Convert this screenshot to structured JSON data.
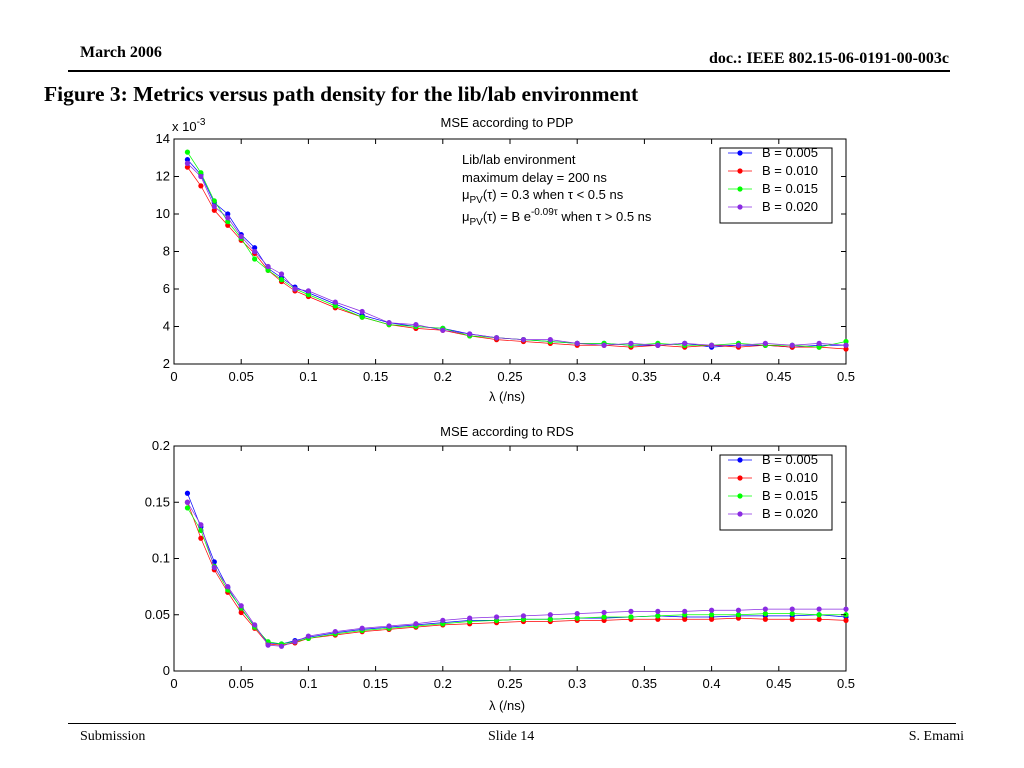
{
  "header": {
    "date": "March 2006",
    "doc": "doc.: IEEE 802.15-06-0191-00-003c"
  },
  "figure_title": "Figure 3: Metrics versus path density for the lib/lab environment",
  "footer": {
    "left": "Submission",
    "center": "Slide 14",
    "right": "S. Emami"
  },
  "colors": {
    "b005": "#0000ff",
    "b010": "#ff0000",
    "b015": "#00ff00",
    "b020": "#8a2be2"
  },
  "chart_data": [
    {
      "type": "line",
      "title": "MSE according to PDP",
      "xlabel": "λ (/ns)",
      "ylabel": "",
      "y_multiplier": "x 10^-3",
      "xlim": [
        0,
        0.5
      ],
      "ylim": [
        2,
        14
      ],
      "xticks": [
        "0",
        "0.05",
        "0.1",
        "0.15",
        "0.2",
        "0.25",
        "0.3",
        "0.35",
        "0.4",
        "0.45",
        "0.5"
      ],
      "yticks": [
        "2",
        "4",
        "6",
        "8",
        "10",
        "12",
        "14"
      ],
      "legend_position": "top-right",
      "annotation": [
        "Lib/lab environment",
        "maximum delay = 200 ns",
        "μPV(τ) = 0.3 when τ < 0.5 ns",
        "μPV(τ) = B e-0.09τ when τ > 0.5 ns"
      ],
      "x": [
        0.01,
        0.02,
        0.03,
        0.04,
        0.05,
        0.06,
        0.07,
        0.08,
        0.09,
        0.1,
        0.12,
        0.14,
        0.16,
        0.18,
        0.2,
        0.22,
        0.24,
        0.26,
        0.28,
        0.3,
        0.32,
        0.34,
        0.36,
        0.38,
        0.4,
        0.42,
        0.44,
        0.46,
        0.48,
        0.5
      ],
      "series": [
        {
          "name": "B = 0.005",
          "color": "#0000ff",
          "values": [
            12.9,
            12.1,
            10.6,
            10.0,
            8.9,
            8.2,
            7.1,
            6.6,
            6.1,
            5.8,
            5.2,
            4.6,
            4.2,
            4.0,
            3.9,
            3.6,
            3.4,
            3.3,
            3.2,
            3.1,
            3.1,
            3.0,
            3.0,
            3.1,
            2.9,
            3.0,
            3.0,
            2.9,
            3.0,
            3.0
          ]
        },
        {
          "name": "B = 0.010",
          "color": "#ff0000",
          "values": [
            12.5,
            11.5,
            10.2,
            9.4,
            8.6,
            7.9,
            7.0,
            6.4,
            5.9,
            5.6,
            5.0,
            4.5,
            4.1,
            3.9,
            3.8,
            3.5,
            3.3,
            3.2,
            3.1,
            3.0,
            3.0,
            2.9,
            3.0,
            2.9,
            3.0,
            2.9,
            3.0,
            2.9,
            2.9,
            2.8
          ]
        },
        {
          "name": "B = 0.015",
          "color": "#00ff00",
          "values": [
            13.3,
            12.2,
            10.7,
            9.6,
            8.7,
            7.6,
            7.0,
            6.5,
            6.0,
            5.7,
            5.1,
            4.5,
            4.1,
            4.0,
            3.9,
            3.5,
            3.4,
            3.3,
            3.2,
            3.1,
            3.1,
            3.0,
            3.1,
            3.0,
            3.0,
            3.1,
            3.0,
            3.0,
            2.9,
            3.2
          ]
        },
        {
          "name": "B = 0.020",
          "color": "#8a2be2",
          "values": [
            12.7,
            12.0,
            10.4,
            9.8,
            8.8,
            8.0,
            7.2,
            6.8,
            6.0,
            5.9,
            5.3,
            4.8,
            4.2,
            4.1,
            3.8,
            3.6,
            3.4,
            3.3,
            3.3,
            3.1,
            3.0,
            3.1,
            3.0,
            3.1,
            3.0,
            3.0,
            3.1,
            3.0,
            3.1,
            3.0
          ]
        }
      ]
    },
    {
      "type": "line",
      "title": "MSE according to RDS",
      "xlabel": "λ (/ns)",
      "ylabel": "",
      "xlim": [
        0,
        0.5
      ],
      "ylim": [
        0,
        0.2
      ],
      "xticks": [
        "0",
        "0.05",
        "0.1",
        "0.15",
        "0.2",
        "0.25",
        "0.3",
        "0.35",
        "0.4",
        "0.45",
        "0.5"
      ],
      "yticks": [
        "0",
        "0.05",
        "0.1",
        "0.15",
        "0.2"
      ],
      "legend_position": "top-right",
      "x": [
        0.01,
        0.02,
        0.03,
        0.04,
        0.05,
        0.06,
        0.07,
        0.08,
        0.09,
        0.1,
        0.12,
        0.14,
        0.16,
        0.18,
        0.2,
        0.22,
        0.24,
        0.26,
        0.28,
        0.3,
        0.32,
        0.34,
        0.36,
        0.38,
        0.4,
        0.42,
        0.44,
        0.46,
        0.48,
        0.5
      ],
      "series": [
        {
          "name": "B = 0.005",
          "color": "#0000ff",
          "values": [
            0.158,
            0.128,
            0.097,
            0.074,
            0.055,
            0.04,
            0.025,
            0.024,
            0.027,
            0.03,
            0.034,
            0.037,
            0.039,
            0.041,
            0.043,
            0.045,
            0.045,
            0.046,
            0.046,
            0.047,
            0.047,
            0.048,
            0.049,
            0.048,
            0.048,
            0.049,
            0.049,
            0.049,
            0.05,
            0.048
          ]
        },
        {
          "name": "B = 0.010",
          "color": "#ff0000",
          "values": [
            0.15,
            0.118,
            0.09,
            0.07,
            0.052,
            0.038,
            0.024,
            0.023,
            0.025,
            0.029,
            0.032,
            0.035,
            0.037,
            0.039,
            0.041,
            0.042,
            0.043,
            0.044,
            0.044,
            0.045,
            0.045,
            0.046,
            0.046,
            0.046,
            0.046,
            0.047,
            0.046,
            0.046,
            0.046,
            0.045
          ]
        },
        {
          "name": "B = 0.015",
          "color": "#00ff00",
          "values": [
            0.145,
            0.125,
            0.093,
            0.072,
            0.056,
            0.039,
            0.026,
            0.024,
            0.026,
            0.029,
            0.033,
            0.036,
            0.038,
            0.04,
            0.042,
            0.044,
            0.045,
            0.046,
            0.046,
            0.047,
            0.048,
            0.048,
            0.049,
            0.05,
            0.05,
            0.05,
            0.051,
            0.051,
            0.05,
            0.05
          ]
        },
        {
          "name": "B = 0.020",
          "color": "#8a2be2",
          "values": [
            0.15,
            0.13,
            0.092,
            0.075,
            0.058,
            0.041,
            0.023,
            0.022,
            0.026,
            0.031,
            0.035,
            0.038,
            0.04,
            0.042,
            0.045,
            0.047,
            0.048,
            0.049,
            0.05,
            0.051,
            0.052,
            0.053,
            0.053,
            0.053,
            0.054,
            0.054,
            0.055,
            0.055,
            0.055,
            0.055
          ]
        }
      ]
    }
  ]
}
